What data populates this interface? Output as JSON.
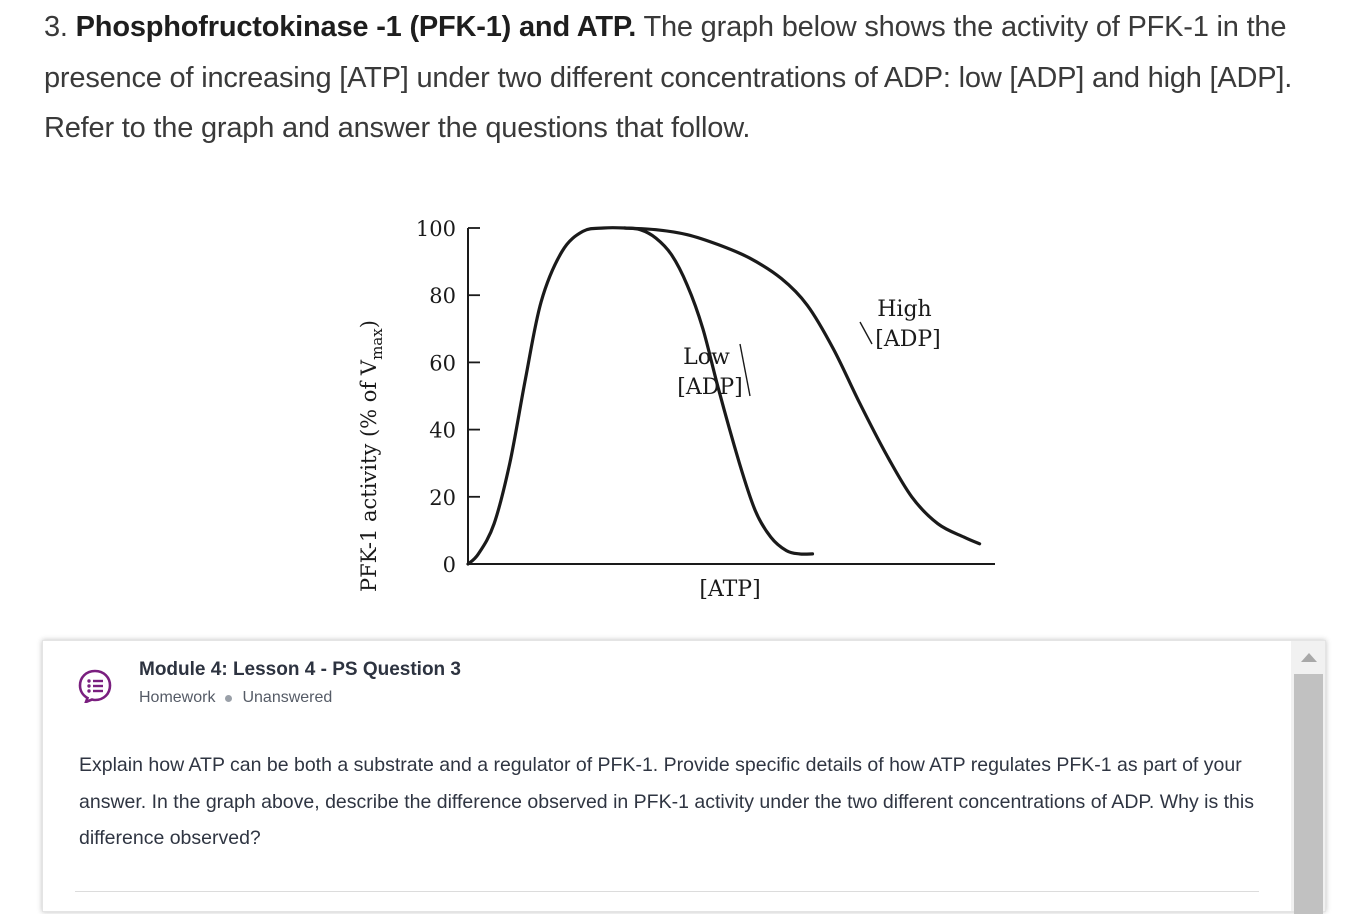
{
  "intro": {
    "number": "3.",
    "title": "Phosphofructokinase -1 (PFK-1) and ATP.",
    "text": "The graph below shows the activity of PFK-1 in the presence of increasing [ATP] under two different concentrations of ADP: low [ADP] and high [ADP]. Refer to the graph and answer the questions that follow."
  },
  "chart_data": {
    "type": "line",
    "ylabel_main": "PFK-1 activity (% of V",
    "ylabel_sub": "max",
    "ylabel_close": ")",
    "xlabel": "[ATP]",
    "ylim": [
      0,
      100
    ],
    "yticks": [
      "0",
      "20",
      "40",
      "60",
      "80",
      "100"
    ],
    "series": [
      {
        "name": "Low [ADP]",
        "label_line1": "Low",
        "label_line2": "[ADP]",
        "x": [
          0,
          0.02,
          0.05,
          0.08,
          0.11,
          0.14,
          0.18,
          0.22,
          0.26,
          0.3,
          0.33,
          0.36,
          0.39,
          0.42,
          0.45,
          0.48,
          0.52,
          0.55,
          0.58,
          0.61,
          0.635,
          0.66
        ],
        "y": [
          0,
          3,
          12,
          30,
          55,
          78,
          93,
          99,
          100,
          100,
          99.5,
          97,
          92,
          83,
          70,
          52,
          30,
          16,
          8,
          4,
          3,
          3
        ]
      },
      {
        "name": "High [ADP]",
        "label_line1": "High",
        "label_line2": "[ADP]",
        "x": [
          0.3,
          0.36,
          0.42,
          0.48,
          0.54,
          0.6,
          0.65,
          0.7,
          0.75,
          0.8,
          0.85,
          0.9,
          0.95,
          0.98
        ],
        "y": [
          100,
          99.5,
          98,
          95,
          91,
          85,
          77,
          64,
          48,
          33,
          20,
          12,
          8,
          6
        ]
      }
    ]
  },
  "question": {
    "title": "Module 4: Lesson 4 - PS Question 3",
    "type": "Homework",
    "status": "Unanswered",
    "icon": "question-list-icon",
    "accent_color": "#7a1f7f",
    "body": "Explain how ATP can be both a substrate and a regulator of PFK-1.  Provide specific details of how ATP regulates PFK-1 as part of your answer. In the graph above, describe the difference observed in PFK-1 activity under the two different concentrations of ADP. Why is this difference observed?"
  }
}
